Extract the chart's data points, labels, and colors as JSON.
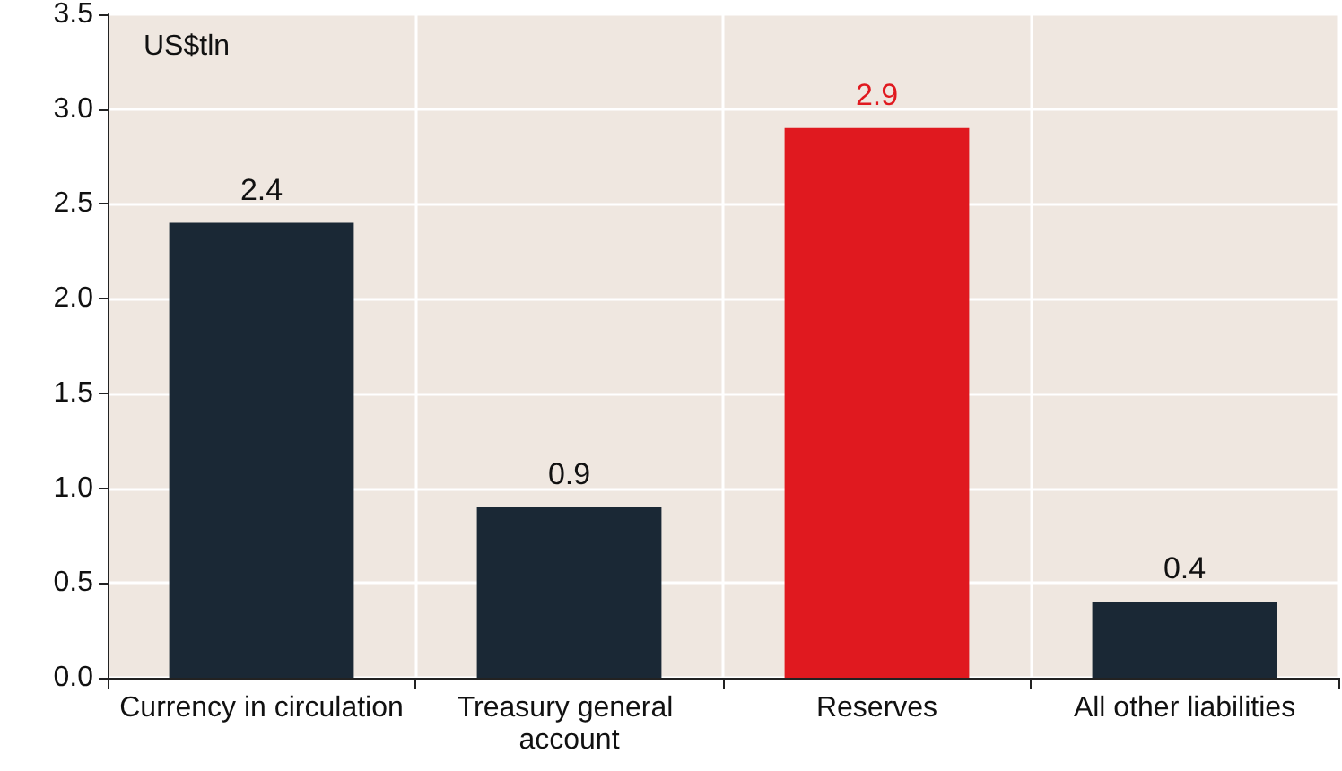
{
  "chart_data": {
    "type": "bar",
    "ylabel": "US$tln",
    "categories": [
      "Currency in circulation",
      "Treasury general account",
      "Reserves",
      "All other liabilities"
    ],
    "values": [
      2.4,
      0.9,
      2.9,
      0.4
    ],
    "colors": [
      "#1a2835",
      "#1a2835",
      "#e0191f",
      "#1a2835"
    ],
    "ylim": [
      0,
      3.5
    ],
    "yticks": [
      {
        "value": 0,
        "label": "0.0"
      },
      0.5,
      {
        "value": 1,
        "label": "1.0"
      },
      1.5,
      {
        "value": 2,
        "label": "2.0"
      },
      2.5,
      {
        "value": 3,
        "label": "3.0"
      },
      3.5
    ],
    "grid": true,
    "data_labels": true
  }
}
